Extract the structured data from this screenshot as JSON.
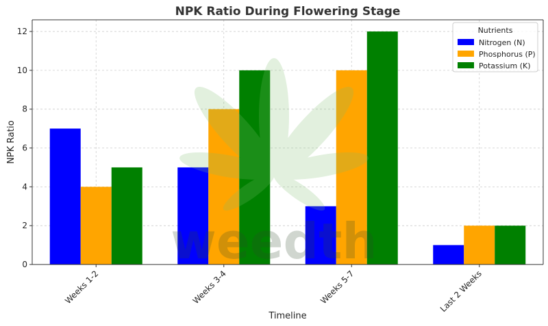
{
  "chart_data": {
    "type": "bar",
    "title": "NPK Ratio During Flowering Stage",
    "xlabel": "Timeline",
    "ylabel": "NPK Ratio",
    "categories": [
      "Weeks 1-2",
      "Weeks 3-4",
      "Weeks 5-7",
      "Last 2 Weeks"
    ],
    "series": [
      {
        "name": "Nitrogen (N)",
        "color": "#0000ff",
        "values": [
          7,
          5,
          3,
          1
        ]
      },
      {
        "name": "Phosphorus (P)",
        "color": "#ffa500",
        "values": [
          4,
          8,
          10,
          2
        ]
      },
      {
        "name": "Potassium (K)",
        "color": "#008000",
        "values": [
          5,
          10,
          12,
          2
        ]
      }
    ],
    "ylim": [
      0,
      12.6
    ],
    "yticks": [
      0,
      2,
      4,
      6,
      8,
      10,
      12
    ],
    "grid": true,
    "legend": {
      "title": "Nutrients",
      "placement": "top-right"
    }
  },
  "watermark": {
    "text": "weedth",
    "icon": "cannabis-leaf-icon"
  }
}
